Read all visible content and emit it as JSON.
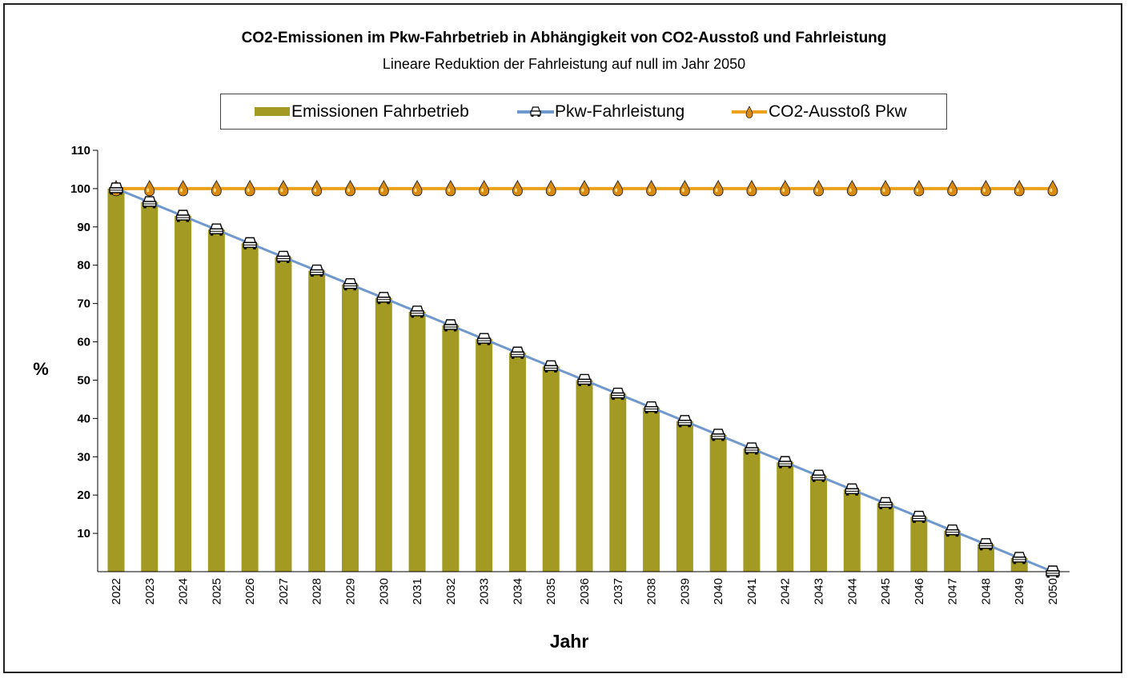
{
  "chart_data": {
    "type": "bar",
    "title": "CO2-Emissionen im Pkw-Fahrbetrieb in Abhängigkeit von CO2-Ausstoß und Fahrleistung",
    "subtitle": "Lineare Reduktion der Fahrleistung auf null im Jahr 2050",
    "xlabel": "Jahr",
    "ylabel": "%",
    "ylim": [
      0,
      110
    ],
    "yticks": [
      10,
      20,
      30,
      40,
      50,
      60,
      70,
      80,
      90,
      100,
      110
    ],
    "grid": false,
    "legend_position": "top",
    "categories": [
      "2022",
      "2023",
      "2024",
      "2025",
      "2026",
      "2027",
      "2028",
      "2029",
      "2030",
      "2031",
      "2032",
      "2033",
      "2034",
      "2035",
      "2036",
      "2037",
      "2038",
      "2039",
      "2040",
      "2041",
      "2042",
      "2043",
      "2044",
      "2045",
      "2046",
      "2047",
      "2048",
      "2049",
      "2050"
    ],
    "series": [
      {
        "name": "Emissionen Fahrbetrieb",
        "kind": "bar",
        "color": "#a29a22",
        "values": [
          100,
          96.43,
          92.86,
          89.29,
          85.71,
          82.14,
          78.57,
          75,
          71.43,
          67.86,
          64.29,
          60.71,
          57.14,
          53.57,
          50,
          46.43,
          42.86,
          39.29,
          35.71,
          32.14,
          28.57,
          25,
          21.43,
          17.86,
          14.29,
          10.71,
          7.14,
          3.57,
          0
        ]
      },
      {
        "name": "Pkw-Fahrleistung",
        "kind": "line",
        "color": "#6f98cc",
        "marker": "car-icon",
        "values": [
          100,
          96.43,
          92.86,
          89.29,
          85.71,
          82.14,
          78.57,
          75,
          71.43,
          67.86,
          64.29,
          60.71,
          57.14,
          53.57,
          50,
          46.43,
          42.86,
          39.29,
          35.71,
          32.14,
          28.57,
          25,
          21.43,
          17.86,
          14.29,
          10.71,
          7.14,
          3.57,
          0
        ]
      },
      {
        "name": "CO2-Ausstoß Pkw",
        "kind": "line",
        "color": "#eba21a",
        "marker": "oil-drop-icon",
        "values": [
          100,
          100,
          100,
          100,
          100,
          100,
          100,
          100,
          100,
          100,
          100,
          100,
          100,
          100,
          100,
          100,
          100,
          100,
          100,
          100,
          100,
          100,
          100,
          100,
          100,
          100,
          100,
          100,
          100
        ]
      }
    ]
  }
}
